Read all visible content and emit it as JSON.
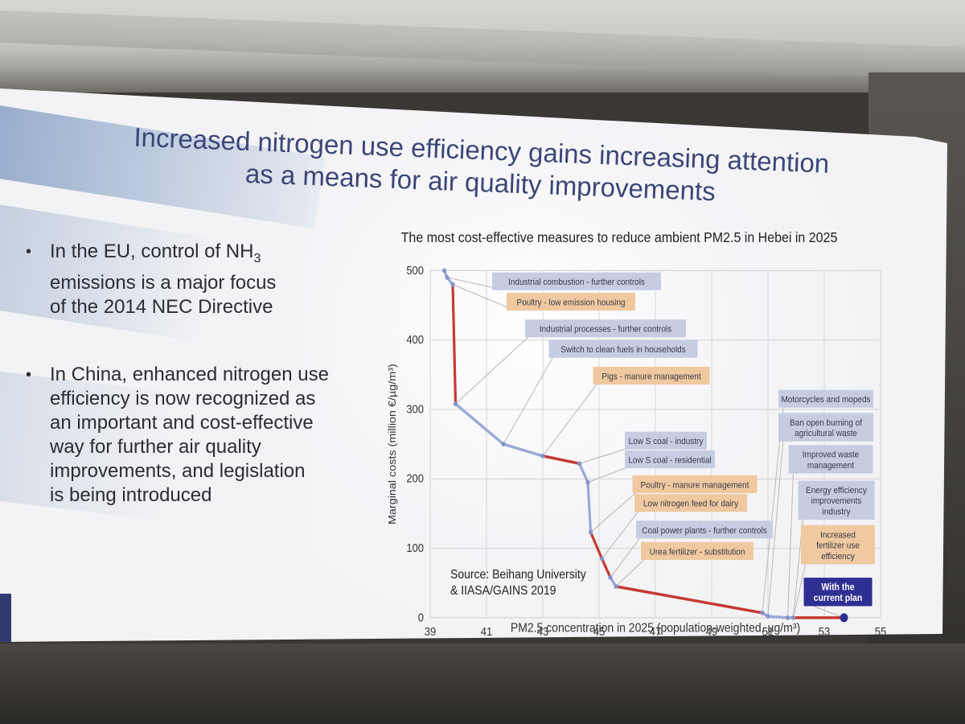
{
  "slide": {
    "title_line1": "Increased nitrogen use efficiency gains increasing attention",
    "title_line2": "as a means for air quality improvements",
    "bullets": [
      {
        "marker": "•",
        "lines": [
          "In the EU, control of NH",
          "emissions is a major focus",
          "of the 2014 NEC Directive"
        ],
        "subscript": "3"
      },
      {
        "marker": "•",
        "lines": [
          "In China, enhanced nitrogen use",
          "efficiency is now recognized as",
          "an important and cost-effective",
          "way for further air quality",
          "improvements, and legislation",
          "is being introduced"
        ]
      }
    ]
  },
  "chart_data": {
    "type": "line",
    "title": "The most cost-effective measures to reduce ambient PM2.5 in Hebei in 2025",
    "xlabel": "PM2.5 concentration in 2025 (population-weighted, µg/m³)",
    "ylabel": "Marginal costs (million €/µg/m³)",
    "xlim": [
      39,
      55
    ],
    "ylim": [
      0,
      500
    ],
    "x_ticks": [
      "39",
      "41",
      "43",
      "45",
      "47",
      "49",
      "51",
      "53",
      "55"
    ],
    "y_ticks": [
      "0",
      "100",
      "200",
      "300",
      "400",
      "500"
    ],
    "grid": true,
    "source": [
      "Source: Beihang University",
      "& IIASA/GAINS 2019"
    ],
    "points": [
      {
        "x": 39.5,
        "y": 500
      },
      {
        "x": 39.6,
        "y": 490
      },
      {
        "x": 39.8,
        "y": 480
      },
      {
        "x": 39.9,
        "y": 308
      },
      {
        "x": 41.6,
        "y": 250
      },
      {
        "x": 43.0,
        "y": 233
      },
      {
        "x": 44.3,
        "y": 222
      },
      {
        "x": 44.6,
        "y": 195
      },
      {
        "x": 44.7,
        "y": 123
      },
      {
        "x": 45.1,
        "y": 85
      },
      {
        "x": 45.4,
        "y": 58
      },
      {
        "x": 45.6,
        "y": 45
      },
      {
        "x": 50.8,
        "y": 7
      },
      {
        "x": 51.0,
        "y": 2
      },
      {
        "x": 51.7,
        "y": 0
      },
      {
        "x": 51.9,
        "y": 0
      },
      {
        "x": 53.7,
        "y": 0
      }
    ],
    "segment_colors": [
      "blue",
      "blue",
      "red",
      "blue",
      "blue",
      "red",
      "blue",
      "blue",
      "red",
      "red",
      "blue",
      "red",
      "blue",
      "blue",
      "blue",
      "red"
    ],
    "colors": {
      "blue": "#9aaad6",
      "red": "#c43b32",
      "dot": "#8792c8",
      "tag_blue": "#c6cde3",
      "tag_orange": "#f0c9a0",
      "current": "#2f2f93"
    },
    "annotations": [
      {
        "text": "Industrial combustion - further controls",
        "kind": "blue",
        "anchor": {
          "x": 39.6,
          "y": 490
        }
      },
      {
        "text": "Poultry - low emission housing",
        "kind": "orange",
        "anchor": {
          "x": 39.8,
          "y": 480
        }
      },
      {
        "text": "Industrial processes - further controls",
        "kind": "blue",
        "anchor": {
          "x": 39.9,
          "y": 308
        }
      },
      {
        "text": "Switch to clean fuels in households",
        "kind": "blue",
        "anchor": {
          "x": 41.6,
          "y": 250
        }
      },
      {
        "text": "Pigs - manure management",
        "kind": "orange",
        "anchor": {
          "x": 43.0,
          "y": 233
        }
      },
      {
        "text": "Low S coal - industry",
        "kind": "blue",
        "anchor": {
          "x": 44.3,
          "y": 222
        }
      },
      {
        "text": "Low S coal - residential",
        "kind": "blue",
        "anchor": {
          "x": 44.6,
          "y": 195
        }
      },
      {
        "text": "Poultry - manure management",
        "kind": "orange",
        "anchor": {
          "x": 44.7,
          "y": 123
        }
      },
      {
        "text": "Low nitrogen feed for dairy",
        "kind": "orange",
        "anchor": {
          "x": 45.1,
          "y": 85
        }
      },
      {
        "text": "Coal power plants - further controls",
        "kind": "blue",
        "anchor": {
          "x": 45.4,
          "y": 58
        }
      },
      {
        "text": "Urea fertilizer - substitution",
        "kind": "orange",
        "anchor": {
          "x": 45.6,
          "y": 45
        }
      },
      {
        "text": "Motorcycles and mopeds",
        "kind": "blue",
        "anchor": {
          "x": 50.8,
          "y": 7
        }
      },
      {
        "text": "Ban open burning of agricultural waste",
        "kind": "blue",
        "anchor": {
          "x": 51.0,
          "y": 2
        }
      },
      {
        "text": "Improved waste management",
        "kind": "blue",
        "anchor": {
          "x": 51.7,
          "y": 0
        }
      },
      {
        "text": "Energy efficiency improvements industry",
        "kind": "blue",
        "anchor": {
          "x": 51.9,
          "y": 0
        }
      },
      {
        "text": "Increased fertilizer use efficiency",
        "kind": "orange",
        "anchor": {
          "x": 51.9,
          "y": 0
        }
      },
      {
        "text": "With the current plan",
        "kind": "current",
        "anchor": {
          "x": 53.7,
          "y": 0
        }
      }
    ]
  }
}
